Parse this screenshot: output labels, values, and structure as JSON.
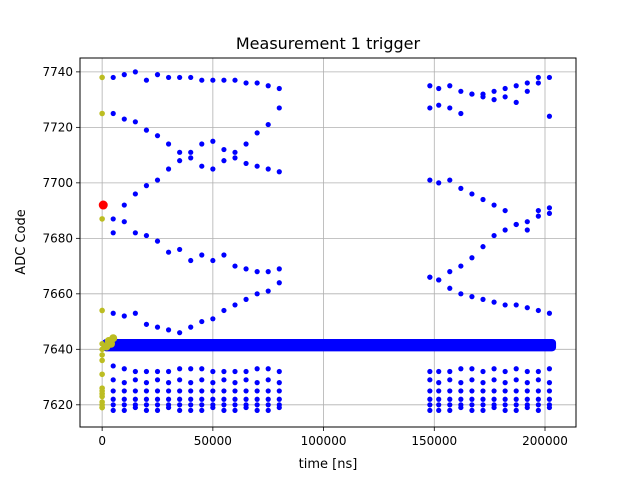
{
  "chart_data": {
    "type": "scatter",
    "title": "Measurement 1 trigger",
    "xlabel": "time [ns]",
    "ylabel": "ADC Code",
    "xlim": [
      -10000,
      214000
    ],
    "ylim": [
      7612,
      7745
    ],
    "grid": true,
    "x_ticks": [
      0,
      50000,
      100000,
      150000,
      200000
    ],
    "x_tick_labels": [
      "0",
      "50000",
      "100000",
      "150000",
      "200000"
    ],
    "y_ticks": [
      7620,
      7640,
      7660,
      7680,
      7700,
      7720,
      7740
    ],
    "y_tick_labels": [
      "7620",
      "7640",
      "7660",
      "7680",
      "7700",
      "7720",
      "7740"
    ],
    "colors": {
      "main": "#0000ff",
      "pretrigger": "#bcbd22",
      "trigger": "#ff0000"
    },
    "series": [
      {
        "role": "main",
        "color": "#0000ff",
        "baseline_band": {
          "x_range": [
            0,
            205000
          ],
          "y_range": [
            7640,
            7643
          ]
        },
        "x": [
          5000,
          10000,
          15000,
          20000,
          25000,
          30000,
          35000,
          40000,
          45000,
          50000,
          55000,
          60000,
          65000,
          70000,
          75000,
          80000,
          148000,
          152000,
          157000,
          162000,
          167000,
          172000,
          177000,
          182000,
          187000,
          192000,
          197000,
          202000
        ],
        "clusters": [
          [
            7738,
            7739,
            7740,
            7737,
            7739,
            7738,
            7738,
            7738,
            7737,
            7737,
            7737,
            7737,
            7736,
            7736,
            7735,
            7734,
            7735,
            7734,
            7735,
            7733,
            7732,
            7732,
            7733,
            7734,
            7735,
            7736,
            7738,
            7738
          ],
          [
            7725,
            7723,
            7722,
            7719,
            7717,
            7714,
            7711,
            7709,
            7706,
            7705,
            7708,
            7711,
            7714,
            7718,
            7721,
            7727,
            7727,
            7728,
            7727,
            7725,
            7732,
            7731,
            7730,
            7731,
            7729,
            7733,
            7736,
            7724
          ],
          [
            7687,
            7692,
            7696,
            7699,
            7701,
            7705,
            7708,
            7711,
            7714,
            7715,
            7712,
            7709,
            7707,
            7706,
            7705,
            7704,
            7701,
            7700,
            7701,
            7698,
            7696,
            7694,
            7692,
            7690,
            7685,
            7683,
            7688,
            7691
          ],
          [
            7682,
            7686,
            7682,
            7681,
            7679,
            7675,
            7676,
            7672,
            7674,
            7672,
            7674,
            7670,
            7669,
            7668,
            7668,
            7669,
            7666,
            7665,
            7668,
            7670,
            7673,
            7677,
            7681,
            7683,
            7685,
            7686,
            7690,
            7689
          ],
          [
            7653,
            7652,
            7653,
            7649,
            7648,
            7647,
            7646,
            7648,
            7650,
            7651,
            7654,
            7656,
            7658,
            7660,
            7661,
            7664,
            7666,
            7665,
            7662,
            7660,
            7659,
            7658,
            7657,
            7656,
            7656,
            7655,
            7654,
            7653
          ],
          [
            7634,
            7633,
            7632,
            7632,
            7632,
            7632,
            7633,
            7633,
            7633,
            7632,
            7632,
            7632,
            7632,
            7633,
            7633,
            7632,
            7632,
            7632,
            7632,
            7633,
            7633,
            7632,
            7633,
            7632,
            7633,
            7632,
            7632,
            7633
          ],
          [
            7629,
            7628,
            7629,
            7628,
            7629,
            7628,
            7629,
            7628,
            7629,
            7628,
            7629,
            7628,
            7629,
            7628,
            7629,
            7628,
            7629,
            7628,
            7629,
            7628,
            7629,
            7628,
            7629,
            7628,
            7629,
            7628,
            7629,
            7628
          ],
          [
            7625,
            7625,
            7625,
            7625,
            7625,
            7625,
            7625,
            7625,
            7625,
            7625,
            7625,
            7625,
            7625,
            7625,
            7625,
            7625,
            7625,
            7625,
            7625,
            7625,
            7625,
            7625,
            7625,
            7625,
            7625,
            7625,
            7625,
            7625
          ],
          [
            7622,
            7622,
            7622,
            7622,
            7622,
            7622,
            7622,
            7622,
            7622,
            7622,
            7622,
            7622,
            7622,
            7622,
            7622,
            7622,
            7622,
            7622,
            7622,
            7622,
            7622,
            7622,
            7622,
            7622,
            7622,
            7622,
            7622,
            7622
          ],
          [
            7620,
            7620,
            7620,
            7620,
            7620,
            7620,
            7620,
            7620,
            7620,
            7620,
            7620,
            7620,
            7620,
            7620,
            7620,
            7620,
            7620,
            7620,
            7620,
            7620,
            7620,
            7620,
            7620,
            7620,
            7620,
            7620,
            7620,
            7620
          ],
          [
            7618,
            7618,
            7619,
            7618,
            7618,
            7619,
            7618,
            7618,
            7618,
            7619,
            7618,
            7618,
            7619,
            7618,
            7618,
            7619,
            7618,
            7618,
            7618,
            7619,
            7618,
            7618,
            7619,
            7618,
            7618,
            7619,
            7618,
            7619
          ]
        ]
      },
      {
        "role": "pretrigger",
        "color": "#bcbd22",
        "x": [
          0,
          0,
          0,
          0,
          0,
          0,
          0,
          0,
          0,
          0,
          0,
          0,
          0,
          0,
          0,
          0,
          0,
          2000,
          3000,
          4000,
          5000
        ],
        "y": [
          7738,
          7725,
          7687,
          7654,
          7642,
          7640,
          7638,
          7636,
          7631,
          7626,
          7625,
          7624,
          7623,
          7621,
          7620,
          7619,
          7619,
          7641,
          7643,
          7642,
          7644
        ]
      },
      {
        "role": "trigger",
        "color": "#ff0000",
        "x": [
          500
        ],
        "y": [
          7692
        ]
      }
    ]
  }
}
